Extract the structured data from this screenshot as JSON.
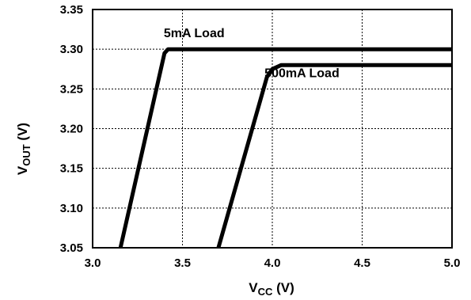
{
  "chart_data": {
    "type": "line",
    "xlabel": {
      "main": "V",
      "sub": "CC",
      "unit": " (V)"
    },
    "ylabel": {
      "main": "V",
      "sub": "OUT",
      "unit": " (V)"
    },
    "xlim": [
      3.0,
      5.0
    ],
    "ylim": [
      3.05,
      3.35
    ],
    "x_ticks": [
      "3.0",
      "3.5",
      "4.0",
      "4.5",
      "5.0"
    ],
    "y_ticks": [
      "3.35",
      "3.30",
      "3.25",
      "3.20",
      "3.15",
      "3.10",
      "3.05"
    ],
    "grid": true,
    "series": [
      {
        "name": "5mA Load",
        "points": [
          [
            3.155,
            3.05
          ],
          [
            3.4,
            3.295
          ],
          [
            3.42,
            3.3
          ],
          [
            5.0,
            3.3
          ]
        ]
      },
      {
        "name": "500mA Load",
        "points": [
          [
            3.7,
            3.05
          ],
          [
            3.97,
            3.265
          ],
          [
            4.0,
            3.275
          ],
          [
            4.05,
            3.28
          ],
          [
            5.0,
            3.28
          ]
        ]
      }
    ],
    "annotations": [
      {
        "text": "5mA Load",
        "x": 3.565,
        "y": 3.315
      },
      {
        "text": "500mA Load",
        "x": 4.165,
        "y": 3.265
      }
    ]
  }
}
